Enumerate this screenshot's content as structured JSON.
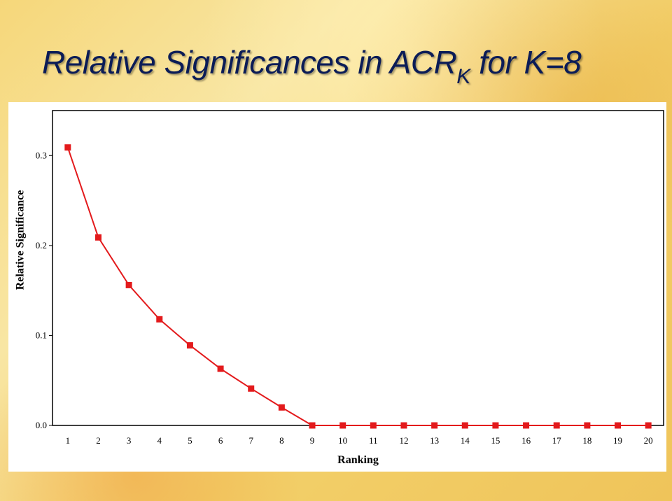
{
  "slide": {
    "title_main": "Relative Significances in ACR",
    "title_sub": "K",
    "title_tail": " for K=8"
  },
  "chart_data": {
    "type": "line",
    "title": "",
    "xlabel": "Ranking",
    "ylabel": "Relative Significance",
    "x": [
      1,
      2,
      3,
      4,
      5,
      6,
      7,
      8,
      9,
      10,
      11,
      12,
      13,
      14,
      15,
      16,
      17,
      18,
      19,
      20
    ],
    "series": [
      {
        "values": [
          0.309,
          0.209,
          0.156,
          0.118,
          0.089,
          0.063,
          0.041,
          0.02,
          0.0,
          0.0,
          0.0,
          0.0,
          0.0,
          0.0,
          0.0,
          0.0,
          0.0,
          0.0,
          0.0,
          0.0
        ],
        "color": "#e31a1c",
        "marker": "square"
      }
    ],
    "yticks": [
      "0.0",
      "0.1",
      "0.2",
      "0.3"
    ],
    "xticks": [
      "1",
      "2",
      "3",
      "4",
      "5",
      "6",
      "7",
      "8",
      "9",
      "10",
      "11",
      "12",
      "13",
      "14",
      "15",
      "16",
      "17",
      "18",
      "19",
      "20"
    ],
    "ylim": [
      0,
      0.35
    ],
    "xlim": [
      0.5,
      20.5
    ],
    "grid": false,
    "legend": "none"
  }
}
